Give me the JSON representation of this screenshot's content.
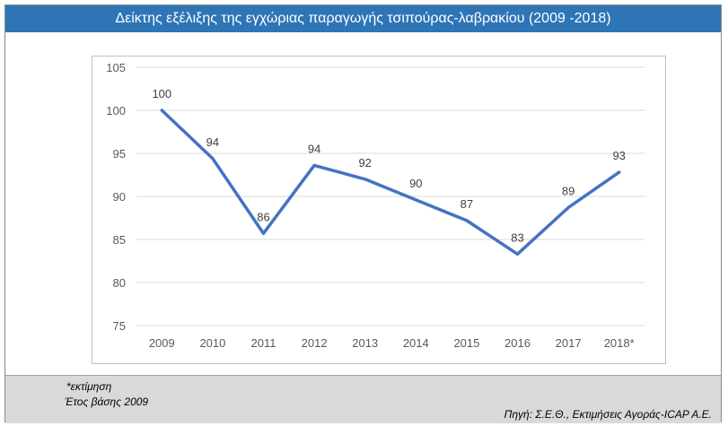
{
  "title": "Δείκτης εξέλιξης της εγχώριας παραγωγής τσιπούρας-λαβρακίου (2009 -2018)",
  "colors": {
    "title_bg": "#2e75b6",
    "line": "#4472c4",
    "grid": "#d9d9d9",
    "footer_bg": "#d9d9d9"
  },
  "chart_data": {
    "type": "line",
    "categories": [
      "2009",
      "2010",
      "2011",
      "2012",
      "2013",
      "2014",
      "2015",
      "2016",
      "2017",
      "2018*"
    ],
    "series": [
      {
        "values": [
          100,
          94.4,
          85.7,
          93.6,
          92.0,
          89.6,
          87.2,
          83.3,
          88.7,
          92.8
        ],
        "labels": [
          "100",
          "94",
          "86",
          "94",
          "92",
          "90",
          "87",
          "83",
          "89",
          "93"
        ]
      }
    ],
    "ylim": [
      75,
      105
    ],
    "yticks": [
      75,
      80,
      85,
      90,
      95,
      100,
      105
    ],
    "grid": true,
    "legend": "none"
  },
  "footer": {
    "note_estimate": "*εκτίμηση",
    "note_base": "Έτος βάσης 2009",
    "source": "Πηγή: Σ.Ε.Θ., Εκτιμήσεις Αγοράς-ICAP A.E."
  }
}
